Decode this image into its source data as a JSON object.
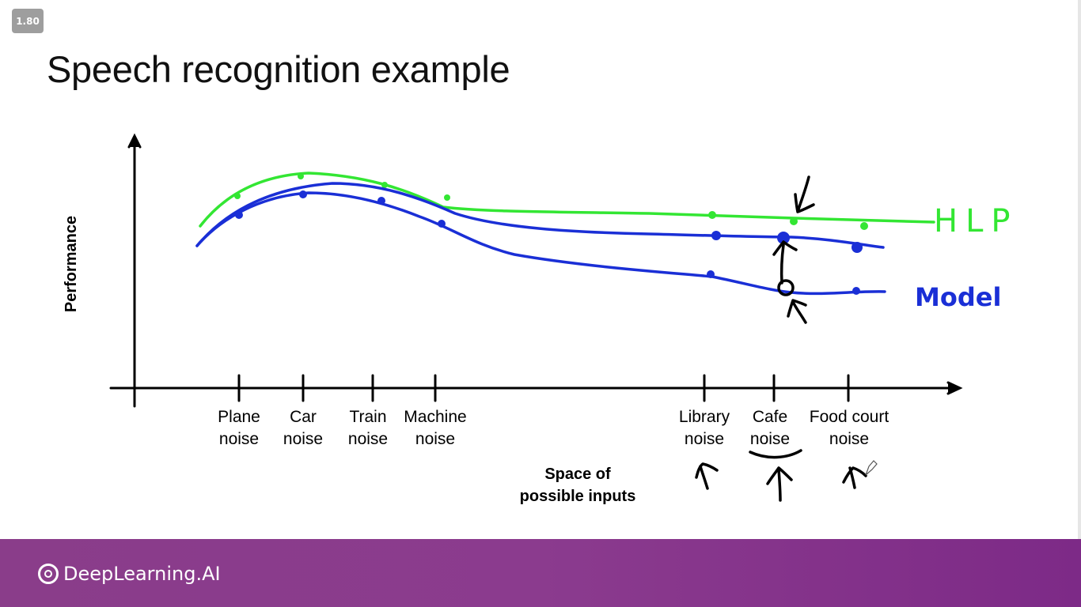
{
  "zoom_badge": "1.80",
  "slide": {
    "title": "Speech recognition example",
    "y_axis_label": "Performance",
    "x_axis_label_line1": "Space of",
    "x_axis_label_line2": "possible inputs",
    "categories": [
      {
        "line1": "Plane",
        "line2": "noise"
      },
      {
        "line1": "Car",
        "line2": "noise"
      },
      {
        "line1": "Train",
        "line2": "noise"
      },
      {
        "line1": "Machine",
        "line2": "noise"
      },
      {
        "line1": "Library",
        "line2": "noise"
      },
      {
        "line1": "Cafe",
        "line2": "noise"
      },
      {
        "line1": "Food court",
        "line2": "noise"
      }
    ],
    "annotations": {
      "hlp": "HLP",
      "model": "Model"
    },
    "colors": {
      "hlp": "#33e633",
      "model": "#1a2fd6",
      "ink": "#000000"
    }
  },
  "footer": {
    "brand": "DeepLearning.AI"
  }
}
